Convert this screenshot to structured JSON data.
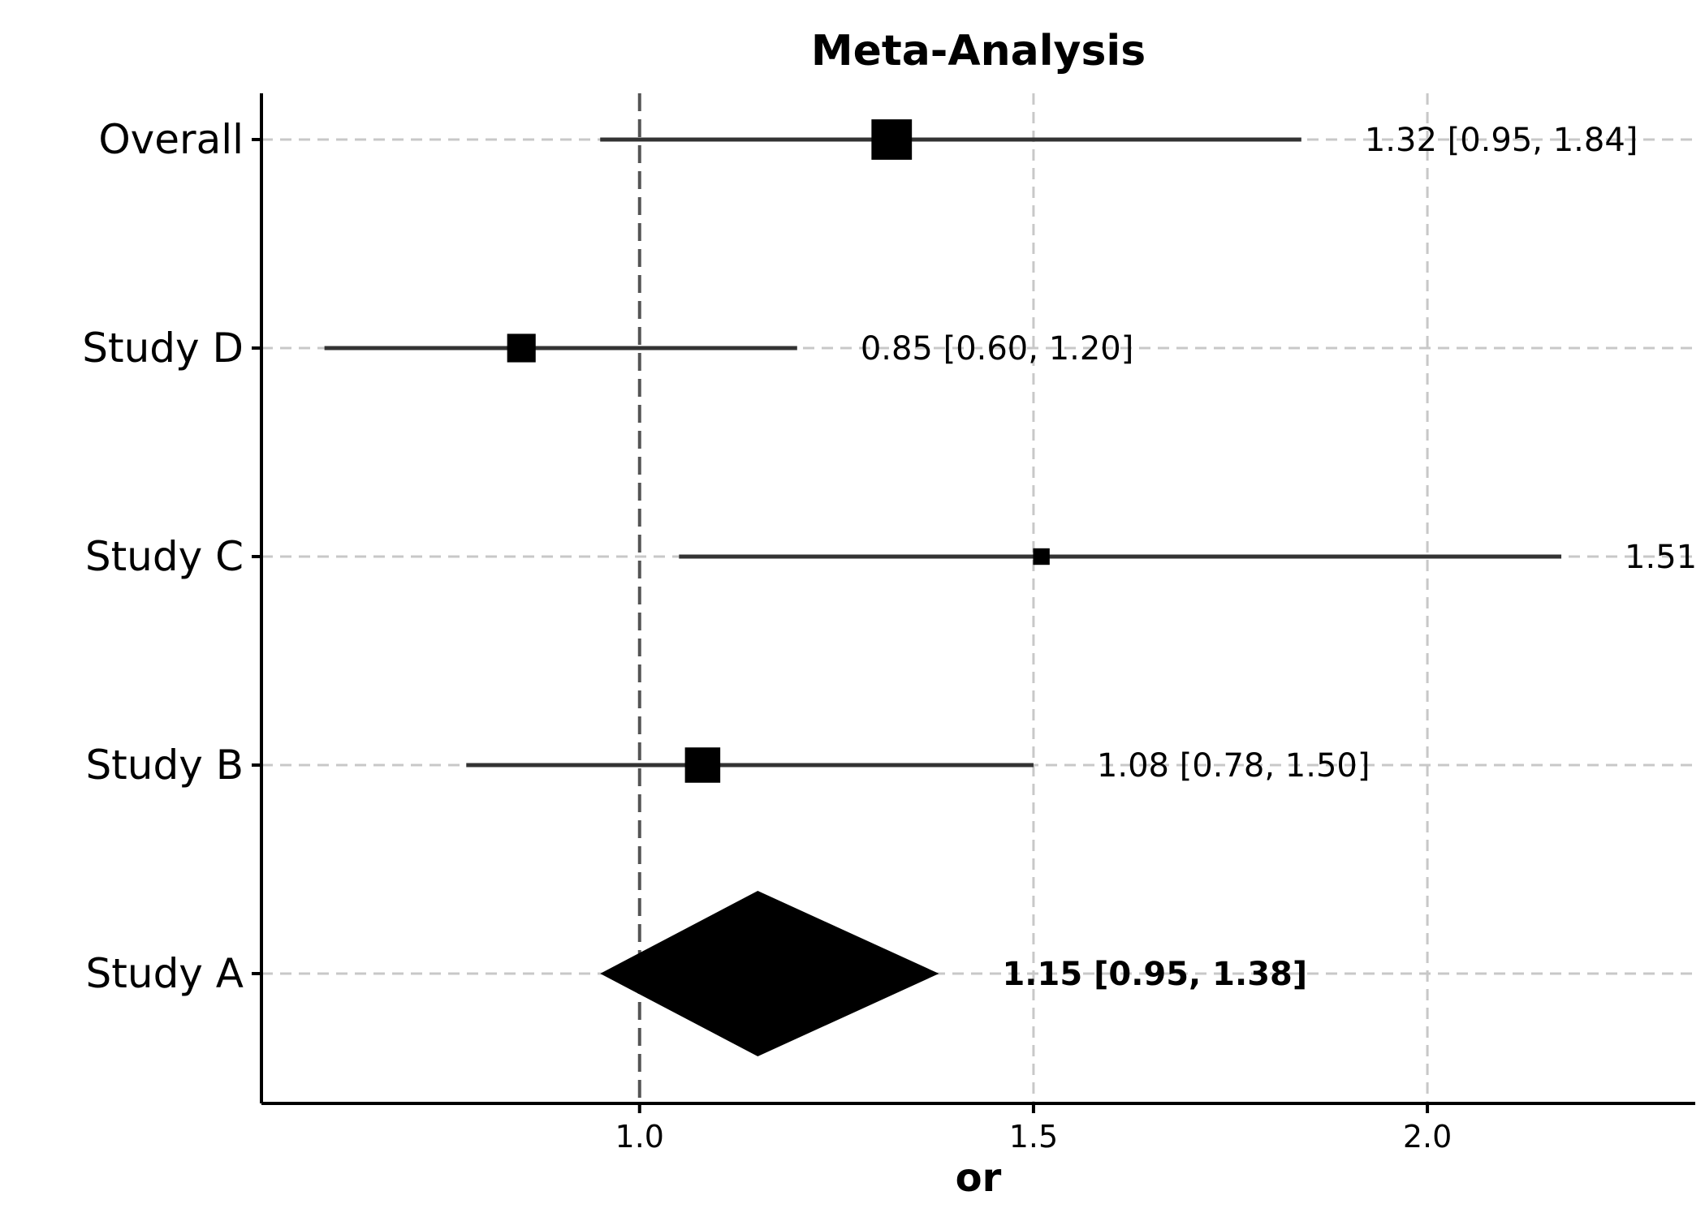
{
  "chart_data": {
    "type": "forest",
    "title": "Meta-Analysis",
    "xlabel": "or",
    "xlim": [
      0.52,
      2.34
    ],
    "xticks": [
      1.0,
      1.5,
      2.0
    ],
    "xtick_labels": [
      "1.0",
      "1.5",
      "2.0"
    ],
    "reference_line": 1.0,
    "grid": "dashed",
    "rows": [
      {
        "label": "Overall",
        "estimate": 1.32,
        "lower": 0.95,
        "upper": 1.84,
        "marker": "square",
        "weight": 0.9,
        "text": "1.32 [0.95, 1.84]",
        "bold": false
      },
      {
        "label": "Study D",
        "estimate": 0.85,
        "lower": 0.6,
        "upper": 1.2,
        "marker": "square",
        "weight": 0.55,
        "text": "0.85 [0.60, 1.20]",
        "bold": false
      },
      {
        "label": "Study C",
        "estimate": 1.51,
        "lower": 1.05,
        "upper": 2.17,
        "marker": "square",
        "weight": 0.2,
        "text": "1.51",
        "bold": false
      },
      {
        "label": "Study B",
        "estimate": 1.08,
        "lower": 0.78,
        "upper": 1.5,
        "marker": "square",
        "weight": 0.75,
        "text": "1.08 [0.78, 1.50]",
        "bold": false
      },
      {
        "label": "Study A",
        "estimate": 1.15,
        "lower": 0.95,
        "upper": 1.38,
        "marker": "diamond",
        "weight": 1,
        "text": "1.15 [0.95, 1.38]",
        "bold": true
      }
    ]
  }
}
